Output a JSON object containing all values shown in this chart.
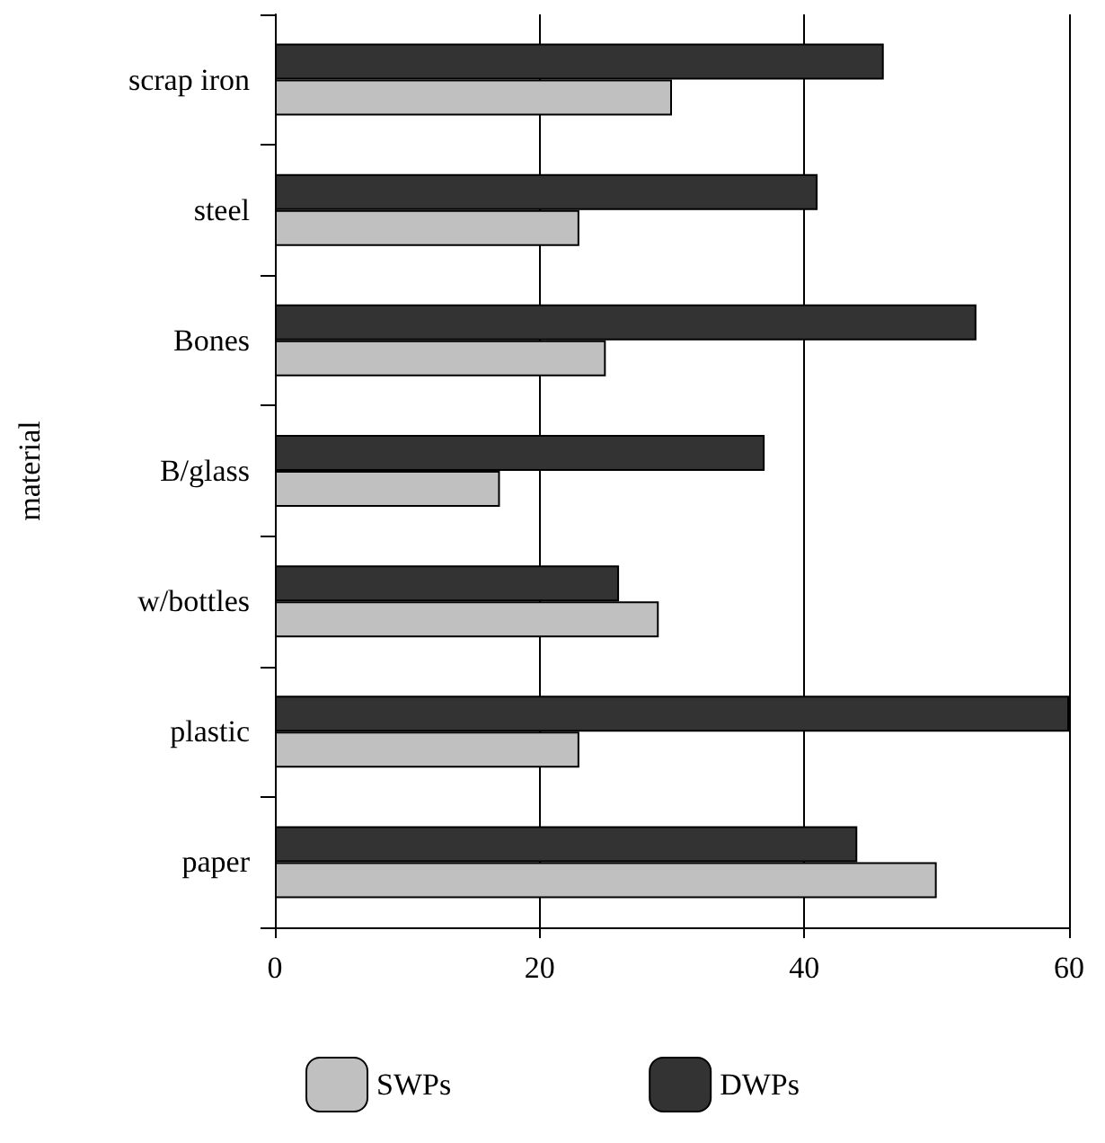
{
  "chart_data": {
    "type": "bar",
    "orientation": "horizontal",
    "ylabel": "material",
    "categories": [
      "scrap iron",
      "steel",
      "Bones",
      "B/glass",
      "w/bottles",
      "plastic",
      "paper"
    ],
    "series": [
      {
        "name": "SWPs",
        "color": "#c0c0c0",
        "values": [
          30,
          23,
          25,
          17,
          29,
          23,
          50
        ]
      },
      {
        "name": "DWPs",
        "color": "#333333",
        "values": [
          46,
          41,
          53,
          37,
          26,
          60,
          44
        ]
      }
    ],
    "xlim": [
      0,
      60
    ],
    "xticks": [
      0,
      20,
      40,
      60
    ],
    "grid": "x",
    "legend": "bottom"
  }
}
